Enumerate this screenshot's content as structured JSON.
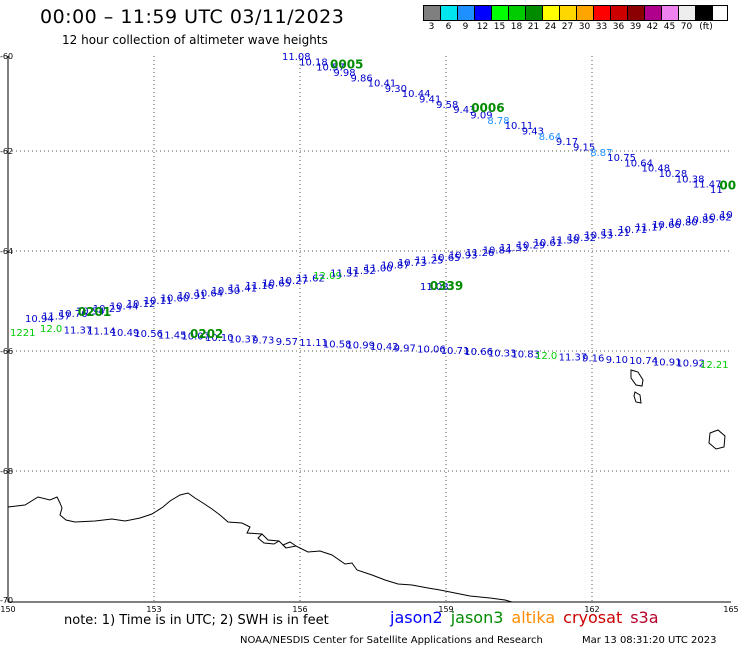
{
  "header": {
    "title": "00:00 – 11:59 UTC 03/11/2023",
    "subtitle": "12 hour collection of altimeter wave heights"
  },
  "legend": {
    "unit": "(ft)",
    "bins": [
      {
        "label": "3",
        "color": "#7f7f7f"
      },
      {
        "label": "6",
        "color": "#00e5ee"
      },
      {
        "label": "9",
        "color": "#1e90ff"
      },
      {
        "label": "12",
        "color": "#0000ff"
      },
      {
        "label": "15",
        "color": "#00ff00"
      },
      {
        "label": "18",
        "color": "#00cd00"
      },
      {
        "label": "21",
        "color": "#008b00"
      },
      {
        "label": "24",
        "color": "#ffff00"
      },
      {
        "label": "27",
        "color": "#ffd700"
      },
      {
        "label": "30",
        "color": "#ffa500"
      },
      {
        "label": "33",
        "color": "#ff0000"
      },
      {
        "label": "36",
        "color": "#cd0000"
      },
      {
        "label": "39",
        "color": "#8b0000"
      },
      {
        "label": "42",
        "color": "#b0008b"
      },
      {
        "label": "45",
        "color": "#ee82ee"
      },
      {
        "label": "70",
        "color": "#eeeeee"
      },
      {
        "label": "",
        "color": "#000000"
      }
    ]
  },
  "map": {
    "lon_ticks": [
      "150",
      "153",
      "156",
      "159",
      "162",
      "165"
    ],
    "lat_ticks": [
      "-60",
      "-62",
      "-64",
      "-66",
      "-68",
      "-70"
    ],
    "track1": {
      "times": [
        {
          "text": "0005",
          "color": "#008b00"
        },
        {
          "text": "0006",
          "color": "#008b00"
        },
        {
          "text": "00",
          "color": "#008b00"
        }
      ],
      "values": [
        {
          "text": "11.08",
          "color": "#0000cd"
        },
        {
          "text": "10.18",
          "color": "#0000cd"
        },
        {
          "text": "10.57",
          "color": "#0000cd"
        },
        {
          "text": "9.98",
          "color": "#0000cd"
        },
        {
          "text": "9.86",
          "color": "#0000cd"
        },
        {
          "text": "10.41",
          "color": "#0000cd"
        },
        {
          "text": "9.30",
          "color": "#0000cd"
        },
        {
          "text": "10.44",
          "color": "#0000cd"
        },
        {
          "text": "9.41",
          "color": "#0000cd"
        },
        {
          "text": "9.58",
          "color": "#0000cd"
        },
        {
          "text": "9.43",
          "color": "#0000cd"
        },
        {
          "text": "9.09",
          "color": "#0000cd"
        },
        {
          "text": "8.78",
          "color": "#1e90ff"
        },
        {
          "text": "10.11",
          "color": "#0000cd"
        },
        {
          "text": "9.43",
          "color": "#0000cd"
        },
        {
          "text": "8.64",
          "color": "#1e90ff"
        },
        {
          "text": "9.17",
          "color": "#0000cd"
        },
        {
          "text": "9.15",
          "color": "#0000cd"
        },
        {
          "text": "8.87",
          "color": "#1e90ff"
        },
        {
          "text": "10.75",
          "color": "#0000cd"
        },
        {
          "text": "10.64",
          "color": "#0000cd"
        },
        {
          "text": "10.48",
          "color": "#0000cd"
        },
        {
          "text": "10.28",
          "color": "#0000cd"
        },
        {
          "text": "10.38",
          "color": "#0000cd"
        },
        {
          "text": "11.47",
          "color": "#0000cd"
        },
        {
          "text": "11",
          "color": "#0000cd"
        }
      ]
    },
    "track2": {
      "times": [
        {
          "text": "0201",
          "color": "#008b00"
        },
        {
          "text": "0203",
          "color": "#008b00"
        }
      ],
      "values": [
        {
          "text": "10.94",
          "color": "#0000cd"
        },
        {
          "text": "11.57",
          "color": "#0000cd"
        },
        {
          "text": "10.76",
          "color": "#0000cd"
        },
        {
          "text": "10.54",
          "color": "#0000cd"
        },
        {
          "text": "10.23",
          "color": "#0000cd"
        },
        {
          "text": "10.44",
          "color": "#0000cd"
        },
        {
          "text": "10.12",
          "color": "#0000cd"
        },
        {
          "text": "10.11",
          "color": "#0000cd"
        },
        {
          "text": "10.60",
          "color": "#0000cd"
        },
        {
          "text": "10.91",
          "color": "#0000cd"
        },
        {
          "text": "10.64",
          "color": "#0000cd"
        },
        {
          "text": "10.50",
          "color": "#0000cd"
        },
        {
          "text": "11.41",
          "color": "#0000cd"
        },
        {
          "text": "11.16",
          "color": "#0000cd"
        },
        {
          "text": "10.65",
          "color": "#0000cd"
        },
        {
          "text": "10.27",
          "color": "#0000cd"
        },
        {
          "text": "11.62",
          "color": "#0000cd"
        },
        {
          "text": "12.09",
          "color": "#00cd00"
        },
        {
          "text": "11.51",
          "color": "#0000cd"
        },
        {
          "text": "11.52",
          "color": "#0000cd"
        },
        {
          "text": "11.00",
          "color": "#0000cd"
        },
        {
          "text": "10.87",
          "color": "#0000cd"
        },
        {
          "text": "10.73",
          "color": "#0000cd"
        },
        {
          "text": "11.25",
          "color": "#0000cd"
        },
        {
          "text": "10.65",
          "color": "#0000cd"
        },
        {
          "text": "10.93",
          "color": "#0000cd"
        },
        {
          "text": "11.26",
          "color": "#0000cd"
        },
        {
          "text": "10.84",
          "color": "#0000cd"
        },
        {
          "text": "11.53",
          "color": "#0000cd"
        },
        {
          "text": "10.29",
          "color": "#0000cd"
        },
        {
          "text": "10.61",
          "color": "#0000cd"
        },
        {
          "text": "11.58",
          "color": "#0000cd"
        },
        {
          "text": "10.32",
          "color": "#0000cd"
        },
        {
          "text": "10.53",
          "color": "#0000cd"
        },
        {
          "text": "11.21",
          "color": "#0000cd"
        },
        {
          "text": "10.71",
          "color": "#0000cd"
        },
        {
          "text": "11.17",
          "color": "#0000cd"
        },
        {
          "text": "10.66",
          "color": "#0000cd"
        },
        {
          "text": "10.80",
          "color": "#0000cd"
        },
        {
          "text": "10.85",
          "color": "#0000cd"
        },
        {
          "text": "10.62",
          "color": "#0000cd"
        },
        {
          "text": "10",
          "color": "#0000cd"
        }
      ]
    },
    "track3": {
      "times": [
        {
          "text": "0202",
          "color": "#008b00"
        }
      ],
      "values": [
        {
          "text": "12.0",
          "color": "#00cd00"
        },
        {
          "text": "11.37",
          "color": "#0000cd"
        },
        {
          "text": "11.14",
          "color": "#0000cd"
        },
        {
          "text": "10.49",
          "color": "#0000cd"
        },
        {
          "text": "10.56",
          "color": "#0000cd"
        },
        {
          "text": "11.45",
          "color": "#0000cd"
        },
        {
          "text": "10.07",
          "color": "#0000cd"
        },
        {
          "text": "10.10",
          "color": "#0000cd"
        },
        {
          "text": "10.37",
          "color": "#0000cd"
        },
        {
          "text": "9.73",
          "color": "#0000cd"
        },
        {
          "text": "9.57",
          "color": "#0000cd"
        },
        {
          "text": "11.11",
          "color": "#0000cd"
        },
        {
          "text": "10.58",
          "color": "#0000cd"
        },
        {
          "text": "10.99",
          "color": "#0000cd"
        },
        {
          "text": "10.42",
          "color": "#0000cd"
        },
        {
          "text": "9.97",
          "color": "#0000cd"
        },
        {
          "text": "10.06",
          "color": "#0000cd"
        },
        {
          "text": "10.71",
          "color": "#0000cd"
        },
        {
          "text": "10.66",
          "color": "#0000cd"
        },
        {
          "text": "10.33",
          "color": "#0000cd"
        },
        {
          "text": "10.83",
          "color": "#0000cd"
        },
        {
          "text": "12.0",
          "color": "#00cd00"
        },
        {
          "text": "11.37",
          "color": "#0000cd"
        },
        {
          "text": "9.16",
          "color": "#0000cd"
        },
        {
          "text": "9.10",
          "color": "#0000cd"
        },
        {
          "text": "10.74",
          "color": "#0000cd"
        },
        {
          "text": "10.91",
          "color": "#0000cd"
        },
        {
          "text": "10.92",
          "color": "#0000cd"
        },
        {
          "text": "12.21",
          "color": "#00cd00"
        }
      ]
    },
    "track4": {
      "times": [
        {
          "text": "0339",
          "color": "#008b00"
        }
      ],
      "values": [
        {
          "text": "1221",
          "color": "#00cd00"
        },
        {
          "text": "11.08",
          "color": "#0000cd"
        }
      ]
    }
  },
  "footer": {
    "note": "note:  1) Time is in UTC; 2) SWH is in feet",
    "satellites": [
      {
        "name": "jason2",
        "color": "#0000ff"
      },
      {
        "name": "jason3",
        "color": "#008b00"
      },
      {
        "name": "altika",
        "color": "#ff8c00"
      },
      {
        "name": "cryosat",
        "color": "#cc0000"
      },
      {
        "name": "s3a",
        "color": "#b8002a"
      }
    ],
    "credit": "NOAA/NESDIS Center for Satellite Applications and Research",
    "generated": "Mar 13 08:31:20 UTC 2023"
  }
}
